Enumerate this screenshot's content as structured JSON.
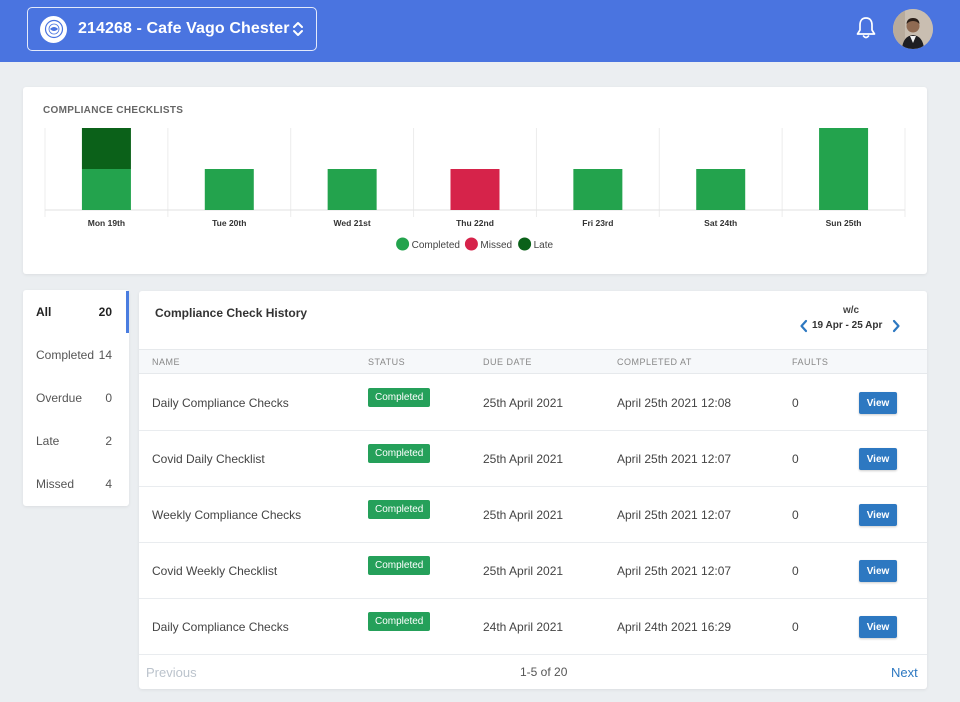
{
  "colors": {
    "header_bg": "#4a74e0",
    "completed": "#23a34d",
    "missed": "#d6234a",
    "late": "#0b6119",
    "badge": "#25a05a",
    "view_button": "#2d78c1"
  },
  "header": {
    "site_label": "214268 - Cafe Vago Chester",
    "icons": [
      "site-logo-icon",
      "chevron-up-down-icon",
      "bell-icon",
      "avatar"
    ]
  },
  "chart_data": {
    "type": "bar",
    "stacked": true,
    "title": "COMPLIANCE CHECKLISTS",
    "categories": [
      "Mon 19th",
      "Tue 20th",
      "Wed 21st",
      "Thu 22nd",
      "Fri 23rd",
      "Sat 24th",
      "Sun 25th"
    ],
    "series": [
      {
        "name": "Completed",
        "color": "#23a34d",
        "values": [
          1,
          1,
          1,
          0,
          1,
          1,
          2
        ]
      },
      {
        "name": "Missed",
        "color": "#d6234a",
        "values": [
          0,
          0,
          0,
          1,
          0,
          0,
          0
        ]
      },
      {
        "name": "Late",
        "color": "#0b6119",
        "values": [
          1,
          0,
          0,
          0,
          0,
          0,
          0
        ]
      }
    ],
    "ylim": [
      0,
      2
    ],
    "legend": "bottom-center",
    "grid": "vertical"
  },
  "filters": [
    {
      "label": "All",
      "count": "20",
      "active": true
    },
    {
      "label": "Completed",
      "count": "14"
    },
    {
      "label": "Overdue",
      "count": "0"
    },
    {
      "label": "Late",
      "count": "2"
    },
    {
      "label": "Missed",
      "count": "4"
    }
  ],
  "history": {
    "title": "Compliance Check History",
    "week_label": "w/c",
    "week_range": "19 Apr - 25 Apr",
    "columns": [
      "NAME",
      "STATUS",
      "DUE DATE",
      "COMPLETED AT",
      "FAULTS"
    ],
    "rows": [
      {
        "name": "Daily Compliance Checks",
        "status": "Completed",
        "due": "25th April 2021",
        "completed": "April 25th 2021 12:08",
        "faults": "0",
        "action": "View"
      },
      {
        "name": "Covid Daily Checklist",
        "status": "Completed",
        "due": "25th April 2021",
        "completed": "April 25th 2021 12:07",
        "faults": "0",
        "action": "View"
      },
      {
        "name": "Weekly Compliance Checks",
        "status": "Completed",
        "due": "25th April 2021",
        "completed": "April 25th 2021 12:07",
        "faults": "0",
        "action": "View"
      },
      {
        "name": "Covid Weekly Checklist",
        "status": "Completed",
        "due": "25th April 2021",
        "completed": "April 25th 2021 12:07",
        "faults": "0",
        "action": "View"
      },
      {
        "name": "Daily Compliance Checks",
        "status": "Completed",
        "due": "24th April 2021",
        "completed": "April 24th 2021 16:29",
        "faults": "0",
        "action": "View"
      }
    ],
    "pagination": {
      "previous": "Previous",
      "info": "1-5 of 20",
      "next": "Next"
    }
  }
}
